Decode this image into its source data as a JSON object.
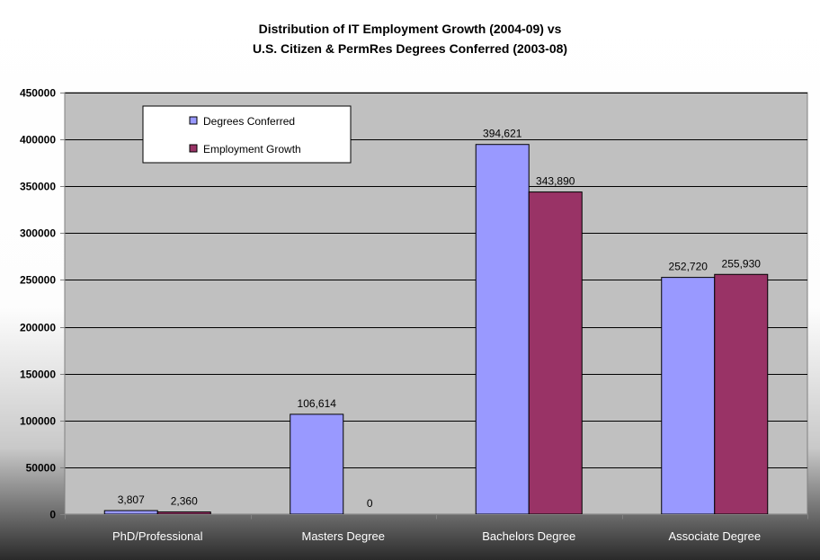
{
  "chart_data": {
    "type": "bar",
    "title_lines": [
      "Distribution of IT Employment Growth (2004-09) vs",
      "U.S. Citizen & PermRes Degrees Conferred (2003-08)"
    ],
    "categories": [
      "PhD/Professional",
      "Masters Degree",
      "Bachelors Degree",
      "Associate Degree"
    ],
    "series": [
      {
        "name": "Degrees Conferred",
        "color": "#9999FF",
        "values": [
          3807,
          106614,
          394621,
          252720
        ],
        "labels": [
          "3,807",
          "106,614",
          "394,621",
          "252,720"
        ]
      },
      {
        "name": "Employment Growth",
        "color": "#993366",
        "values": [
          2360,
          0,
          343890,
          255930
        ],
        "labels": [
          "2,360",
          "0",
          "343,890",
          "255,930"
        ]
      }
    ],
    "ylim": [
      0,
      450000
    ],
    "yticks": [
      "0",
      "50000",
      "100000",
      "150000",
      "200000",
      "250000",
      "300000",
      "350000",
      "400000",
      "450000"
    ],
    "ytick_values": [
      0,
      50000,
      100000,
      150000,
      200000,
      250000,
      300000,
      350000,
      400000,
      450000
    ],
    "xlabel": "",
    "ylabel": "",
    "grid": true,
    "legend_position": "top-left",
    "plot_background": "#C0C0C0"
  }
}
